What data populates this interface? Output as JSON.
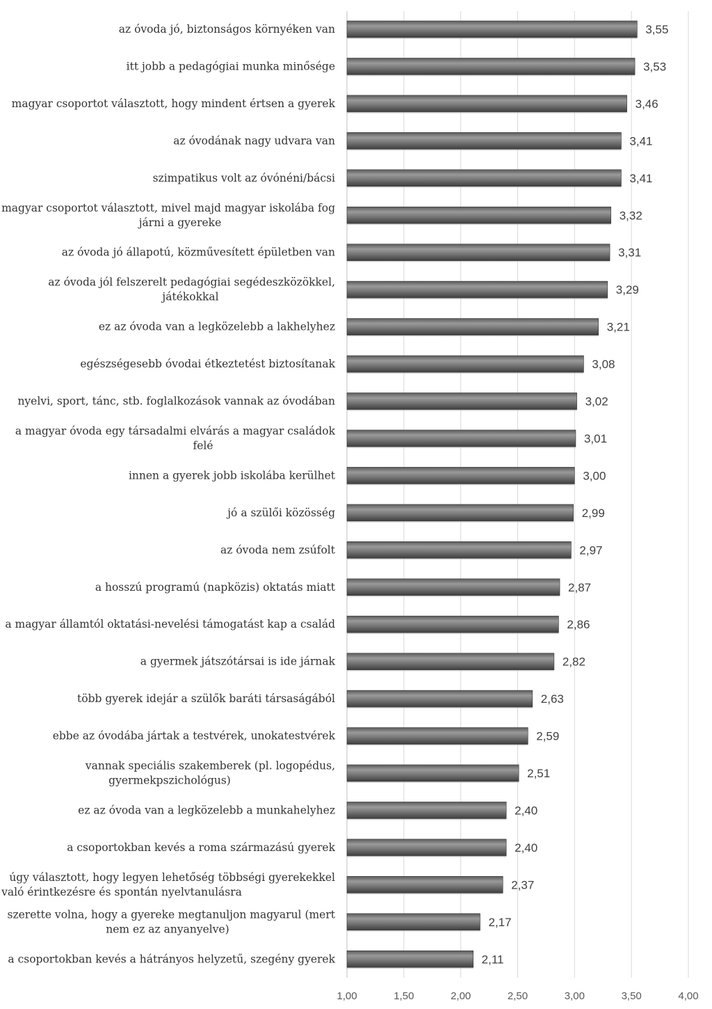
{
  "chart_data": {
    "type": "bar",
    "orientation": "horizontal",
    "title": "",
    "xlabel": "",
    "ylabel": "",
    "xlim": [
      1.0,
      4.0
    ],
    "grid": true,
    "legend": "none",
    "bar_color": "#6e6e6e",
    "ticks": [
      "1,00",
      "1,50",
      "2,00",
      "2,50",
      "3,00",
      "3,50",
      "4,00"
    ],
    "tick_values": [
      1.0,
      1.5,
      2.0,
      2.5,
      3.0,
      3.5,
      4.0
    ],
    "categories": [
      [
        "az óvoda jó, biztonságos környéken van"
      ],
      [
        "itt jobb a pedagógiai munka minősége"
      ],
      [
        "magyar csoportot választott, hogy mindent értsen a gyerek"
      ],
      [
        "az óvodának nagy udvara van"
      ],
      [
        "szimpatikus volt az óvónéni/bácsi"
      ],
      [
        "magyar csoportot választott, mivel majd magyar iskolába fog",
        "járni a gyereke"
      ],
      [
        "az óvoda jó állapotú, közművesített épületben van"
      ],
      [
        "az óvoda jól felszerelt pedagógiai segédeszközökkel,",
        "játékokkal"
      ],
      [
        "ez az óvoda van a legközelebb a lakhelyhez"
      ],
      [
        "egészségesebb óvodai étkeztetést biztosítanak"
      ],
      [
        "nyelvi, sport, tánc, stb. foglalkozások vannak az óvodában"
      ],
      [
        "a magyar óvoda egy társadalmi elvárás a magyar családok",
        "felé"
      ],
      [
        "innen a gyerek jobb iskolába kerülhet"
      ],
      [
        "jó a szülői közösség"
      ],
      [
        "az óvoda nem zsúfolt"
      ],
      [
        "a hosszú programú (napközis) oktatás miatt"
      ],
      [
        "a magyar államtól oktatási-nevelési támogatást kap a család"
      ],
      [
        "a gyermek játszótársai is ide járnak"
      ],
      [
        "több gyerek idejár a szülők baráti társaságából"
      ],
      [
        "ebbe az óvodába jártak a testvérek, unokatestvérek"
      ],
      [
        "vannak speciális szakemberek (pl. logopédus,",
        "gyermekpszichológus)"
      ],
      [
        "ez az óvoda van a legközelebb a munkahelyhez"
      ],
      [
        "a csoportokban kevés a roma származású gyerek"
      ],
      [
        "úgy választott, hogy legyen lehetőség többségi gyerekekkel",
        "való érintkezésre és spontán nyelvtanulásra"
      ],
      [
        "szerette volna, hogy a gyereke megtanuljon magyarul (mert",
        "nem ez az anyanyelve)"
      ],
      [
        "a csoportokban kevés a hátrányos helyzetű, szegény gyerek"
      ]
    ],
    "values": [
      3.55,
      3.53,
      3.46,
      3.41,
      3.41,
      3.32,
      3.31,
      3.29,
      3.21,
      3.08,
      3.02,
      3.01,
      3.0,
      2.99,
      2.97,
      2.87,
      2.86,
      2.82,
      2.63,
      2.59,
      2.51,
      2.4,
      2.4,
      2.37,
      2.17,
      2.11
    ],
    "value_labels": [
      "3,55",
      "3,53",
      "3,46",
      "3,41",
      "3,41",
      "3,32",
      "3,31",
      "3,29",
      "3,21",
      "3,08",
      "3,02",
      "3,01",
      "3,00",
      "2,99",
      "2,97",
      "2,87",
      "2,86",
      "2,82",
      "2,63",
      "2,59",
      "2,51",
      "2,40",
      "2,40",
      "2,37",
      "2,17",
      "2,11"
    ]
  }
}
